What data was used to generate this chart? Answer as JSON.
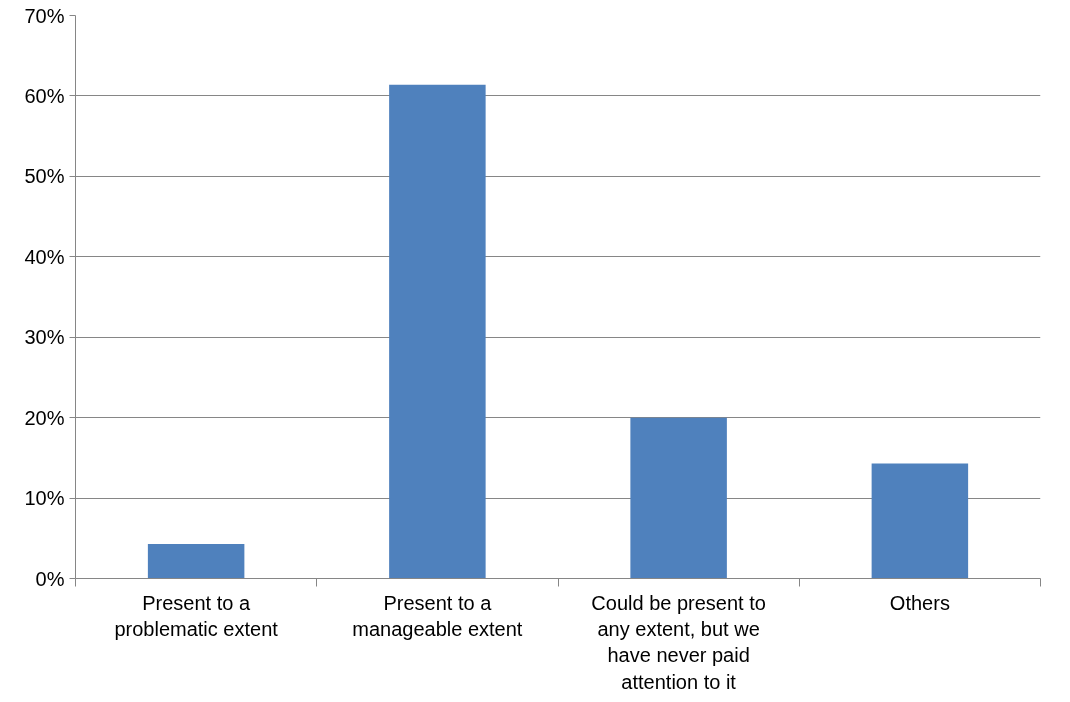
{
  "chart_data": {
    "type": "bar",
    "categories": [
      "Present to a problematic extent",
      "Present to a manageable extent",
      "Could be present to any extent, but we have never paid attention to it",
      "Others"
    ],
    "values": [
      4.3,
      61.4,
      20,
      14.3
    ],
    "color": "#4f81bd",
    "ylim": [
      0,
      70
    ],
    "yticks": [
      {
        "value": 0,
        "label": "0%"
      },
      {
        "value": 10,
        "label": "10%"
      },
      {
        "value": 20,
        "label": "20%"
      },
      {
        "value": 30,
        "label": "30%"
      },
      {
        "value": 40,
        "label": "40%"
      },
      {
        "value": 50,
        "label": "50%"
      },
      {
        "value": 60,
        "label": "60%"
      },
      {
        "value": 70,
        "label": "70%"
      }
    ],
    "grid": "y"
  }
}
